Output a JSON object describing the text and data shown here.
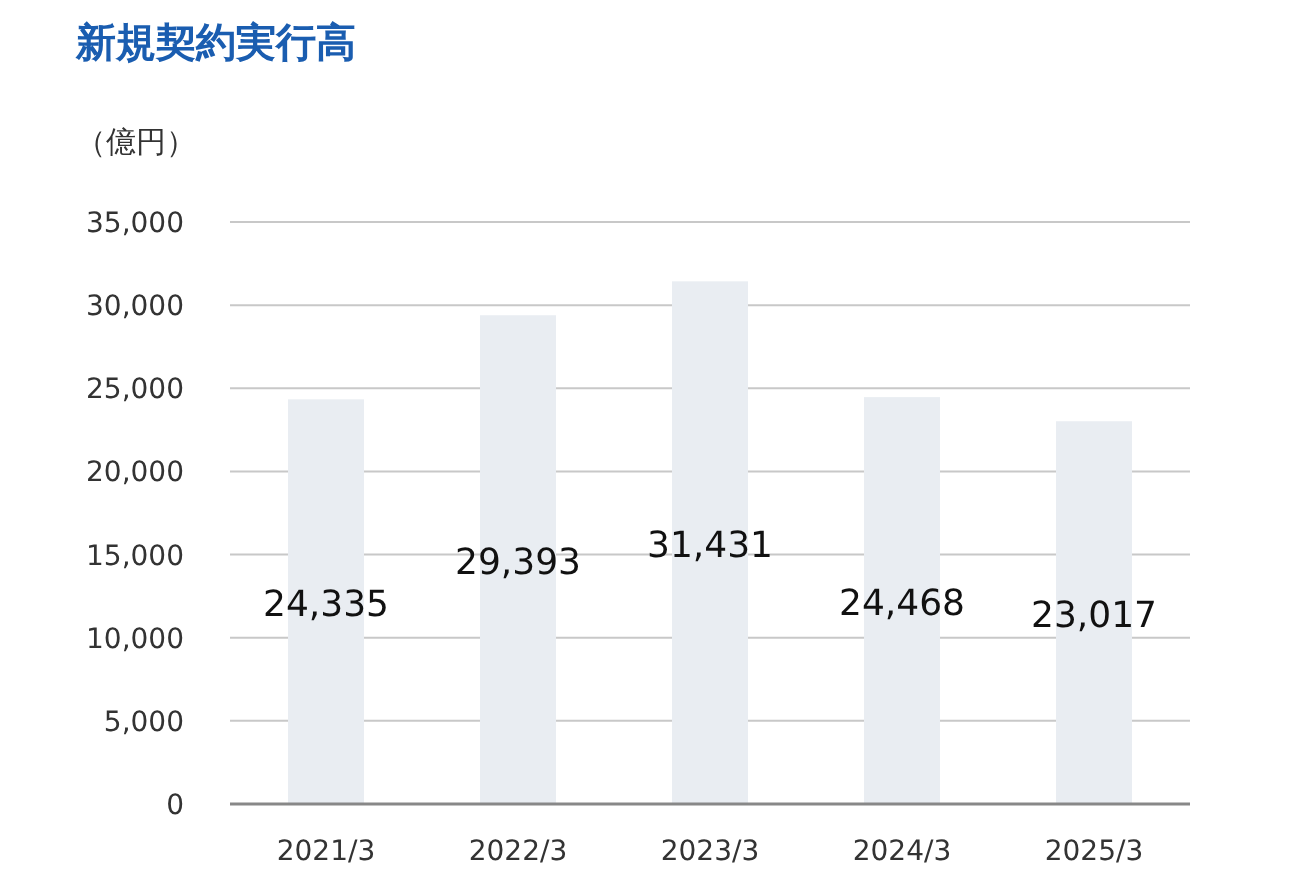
{
  "chart_data": {
    "type": "bar",
    "title": "新規契約実行高",
    "ylabel": "（億円）",
    "categories": [
      "2021/3",
      "2022/3",
      "2023/3",
      "2024/3",
      "2025/3"
    ],
    "values": [
      24335,
      29393,
      31431,
      24468,
      23017
    ],
    "value_labels": [
      "24,335",
      "29,393",
      "31,431",
      "24,468",
      "23,017"
    ],
    "color": "#e9edf2",
    "ylim": [
      0,
      35000
    ],
    "yticks": [
      {
        "value": 0,
        "label": "0"
      },
      {
        "value": 5000,
        "label": "5,000"
      },
      {
        "value": 10000,
        "label": "10,000"
      },
      {
        "value": 15000,
        "label": "15,000"
      },
      {
        "value": 20000,
        "label": "20,000"
      },
      {
        "value": 25000,
        "label": "25,000"
      },
      {
        "value": 30000,
        "label": "30,000"
      },
      {
        "value": 35000,
        "label": "35,000"
      }
    ],
    "grid": "y"
  }
}
